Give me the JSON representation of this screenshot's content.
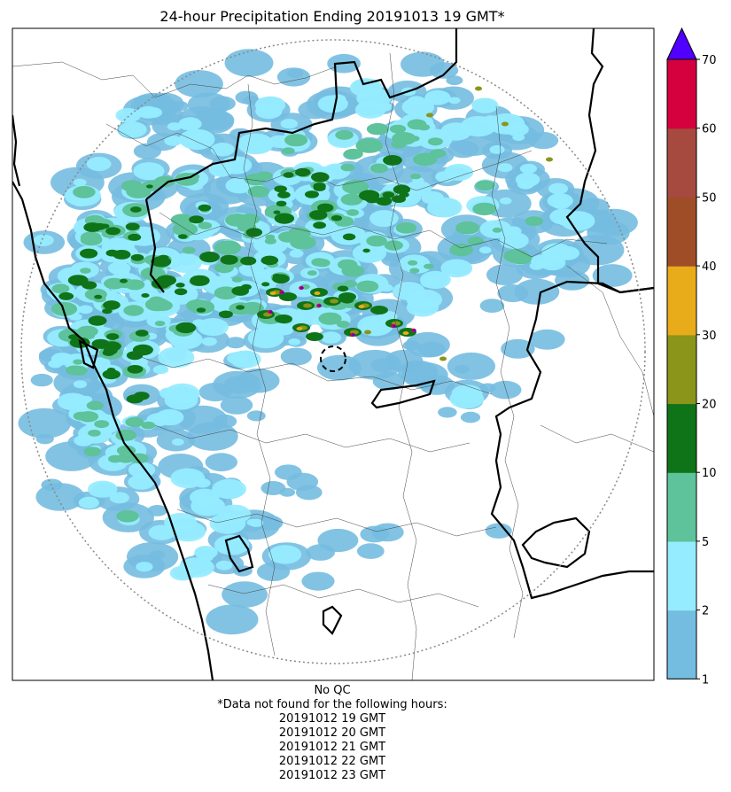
{
  "title": "24-hour Precipitation Ending 20191013 19 GMT*",
  "qc_status": "No QC",
  "missing_note": "*Data not found for the following hours:",
  "missing_hours": [
    "20191012 19 GMT",
    "20191012 20 GMT",
    "20191012 21 GMT",
    "20191012 22 GMT",
    "20191012 23 GMT"
  ],
  "colorbar": {
    "tick_labels": [
      "1",
      "2",
      "5",
      "10",
      "20",
      "30",
      "40",
      "50",
      "60",
      "70"
    ],
    "colors": [
      "#74bde0",
      "#96ecff",
      "#5ec29a",
      "#0f7318",
      "#8a951a",
      "#e8ac1b",
      "#9e4d27",
      "#a64a40",
      "#d5003e"
    ],
    "extend_color": "#5000ff"
  },
  "map_colors": {
    "light_blue": "#74bde0",
    "cyan": "#96ecff",
    "mint": "#5ec29a",
    "dark_green": "#0f7318",
    "olive": "#8a951a",
    "orange": "#e8ac1b",
    "red": "#d5003e",
    "purple": "#5000ff"
  }
}
